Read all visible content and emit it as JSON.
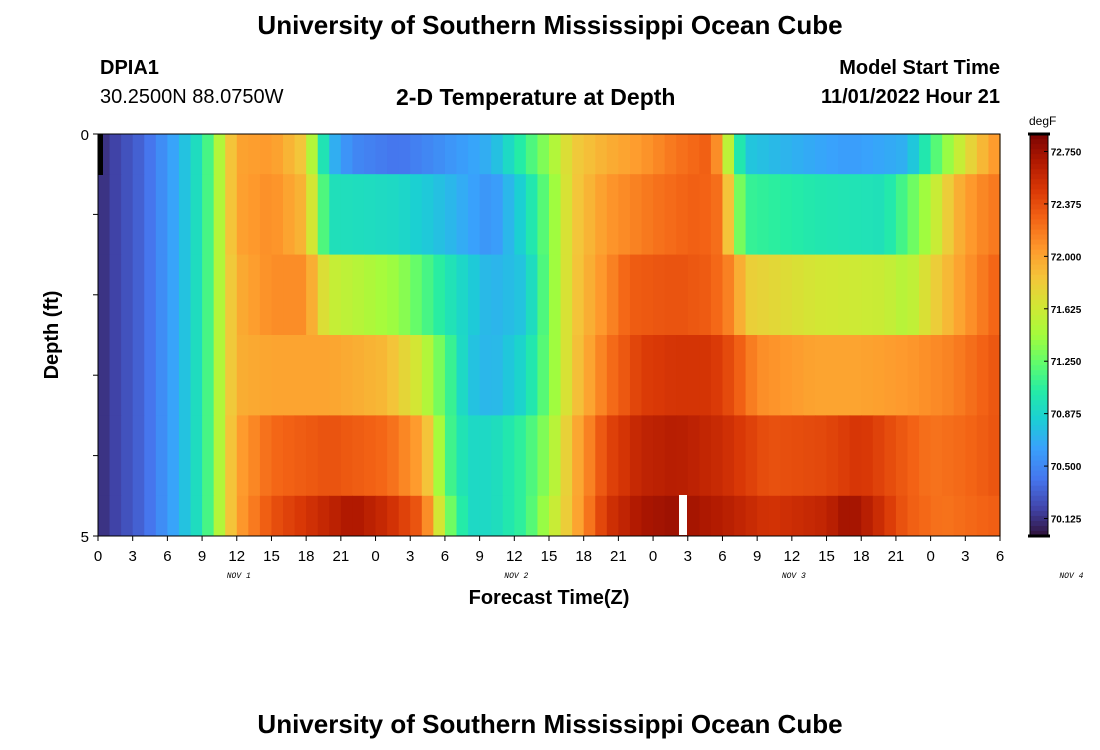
{
  "header": {
    "title": "University of Southern Mississippi Ocean Cube",
    "station": "DPIA1",
    "coords": "30.2500N  88.0750W",
    "subtitle": "2-D Temperature at Depth",
    "model_start_label": "Model Start Time",
    "model_start_value": "11/01/2022 Hour 21"
  },
  "footer": {
    "title": "University of Southern Mississippi Ocean Cube"
  },
  "chart_data": {
    "type": "heatmap",
    "xlabel": "Forecast Time(Z)",
    "ylabel": "Depth (ft)",
    "x_tick_labels": [
      "0",
      "3",
      "6",
      "9",
      "12",
      "15",
      "18",
      "21",
      "0",
      "3",
      "6",
      "9",
      "12",
      "15",
      "18",
      "21",
      "0",
      "3",
      "6",
      "9",
      "12",
      "15",
      "18",
      "21",
      "0",
      "3",
      "6"
    ],
    "day_labels": [
      {
        "label": "NOV 1",
        "hour": 12
      },
      {
        "label": "NOV 2",
        "hour": 36
      },
      {
        "label": "NOV 3",
        "hour": 60
      },
      {
        "label": "NOV 4",
        "hour": 84
      }
    ],
    "y_tick_labels": [
      {
        "value": 0,
        "label": "0"
      },
      {
        "value": 5,
        "label": "5"
      }
    ],
    "xlim": [
      0,
      78
    ],
    "ylim": [
      0,
      5
    ],
    "colorbar": {
      "unit": "degF",
      "min": 70.0,
      "max": 72.875,
      "tick_labels": [
        "72.750",
        "72.375",
        "72.000",
        "71.625",
        "71.250",
        "70.875",
        "70.500",
        "70.125"
      ]
    },
    "depth_layers_ft": [
      0,
      1,
      2,
      3,
      4,
      5
    ],
    "layers": [
      {
        "depth_range": "0-0.5",
        "keys": [
          [
            0,
            70.1
          ],
          [
            4,
            70.35
          ],
          [
            7,
            70.7
          ],
          [
            9,
            71.0
          ],
          [
            10,
            71.3
          ],
          [
            11,
            71.7
          ],
          [
            12,
            72.0
          ],
          [
            15,
            72.05
          ],
          [
            18,
            71.8
          ],
          [
            19,
            71.2
          ],
          [
            20,
            70.75
          ],
          [
            22,
            70.5
          ],
          [
            26,
            70.4
          ],
          [
            30,
            70.55
          ],
          [
            34,
            70.7
          ],
          [
            37,
            71.1
          ],
          [
            39,
            71.4
          ],
          [
            41,
            71.8
          ],
          [
            44,
            71.95
          ],
          [
            47,
            72.05
          ],
          [
            50,
            72.2
          ],
          [
            53,
            72.3
          ],
          [
            54,
            71.9
          ],
          [
            55,
            71.2
          ],
          [
            56,
            70.8
          ],
          [
            60,
            70.7
          ],
          [
            65,
            70.6
          ],
          [
            70,
            70.7
          ],
          [
            72,
            71.1
          ],
          [
            74,
            71.5
          ],
          [
            76,
            71.85
          ],
          [
            78,
            72.1
          ]
        ]
      },
      {
        "depth_range": "0.5-1.5",
        "keys": [
          [
            0,
            70.1
          ],
          [
            4,
            70.35
          ],
          [
            7,
            70.7
          ],
          [
            9,
            71.0
          ],
          [
            10,
            71.3
          ],
          [
            11,
            71.7
          ],
          [
            12,
            72.0
          ],
          [
            15,
            72.1
          ],
          [
            18,
            71.9
          ],
          [
            19,
            71.4
          ],
          [
            20,
            70.95
          ],
          [
            26,
            70.9
          ],
          [
            30,
            70.75
          ],
          [
            34,
            70.55
          ],
          [
            37,
            70.9
          ],
          [
            39,
            71.3
          ],
          [
            41,
            71.8
          ],
          [
            44,
            72.05
          ],
          [
            48,
            72.2
          ],
          [
            52,
            72.3
          ],
          [
            54,
            72.2
          ],
          [
            55,
            71.5
          ],
          [
            56,
            71.1
          ],
          [
            62,
            71.0
          ],
          [
            68,
            70.95
          ],
          [
            70,
            71.2
          ],
          [
            72,
            71.5
          ],
          [
            74,
            71.9
          ],
          [
            76,
            72.1
          ],
          [
            78,
            72.2
          ]
        ]
      },
      {
        "depth_range": "1.5-2.5",
        "keys": [
          [
            0,
            70.1
          ],
          [
            4,
            70.35
          ],
          [
            7,
            70.7
          ],
          [
            9,
            71.0
          ],
          [
            10,
            71.3
          ],
          [
            11,
            71.7
          ],
          [
            12,
            71.95
          ],
          [
            15,
            72.1
          ],
          [
            18,
            72.1
          ],
          [
            19,
            71.8
          ],
          [
            20,
            71.6
          ],
          [
            26,
            71.4
          ],
          [
            30,
            71.0
          ],
          [
            34,
            70.7
          ],
          [
            37,
            70.8
          ],
          [
            39,
            71.3
          ],
          [
            41,
            71.8
          ],
          [
            44,
            72.1
          ],
          [
            46,
            72.3
          ],
          [
            50,
            72.35
          ],
          [
            53,
            72.3
          ],
          [
            55,
            72.1
          ],
          [
            56,
            71.8
          ],
          [
            62,
            71.65
          ],
          [
            68,
            71.6
          ],
          [
            70,
            71.5
          ],
          [
            72,
            71.75
          ],
          [
            75,
            72.05
          ],
          [
            78,
            72.3
          ]
        ]
      },
      {
        "depth_range": "2.5-3.5",
        "keys": [
          [
            0,
            70.1
          ],
          [
            4,
            70.35
          ],
          [
            7,
            70.7
          ],
          [
            9,
            71.0
          ],
          [
            10,
            71.3
          ],
          [
            11,
            71.7
          ],
          [
            12,
            71.95
          ],
          [
            15,
            72.0
          ],
          [
            20,
            72.0
          ],
          [
            25,
            71.9
          ],
          [
            28,
            71.6
          ],
          [
            30,
            71.2
          ],
          [
            32,
            70.8
          ],
          [
            34,
            70.7
          ],
          [
            37,
            70.9
          ],
          [
            39,
            71.3
          ],
          [
            41,
            71.8
          ],
          [
            44,
            72.2
          ],
          [
            47,
            72.45
          ],
          [
            50,
            72.5
          ],
          [
            53,
            72.5
          ],
          [
            55,
            72.35
          ],
          [
            57,
            72.1
          ],
          [
            62,
            72.0
          ],
          [
            66,
            72.0
          ],
          [
            70,
            72.05
          ],
          [
            74,
            72.15
          ],
          [
            78,
            72.35
          ]
        ]
      },
      {
        "depth_range": "3.5-4.5",
        "keys": [
          [
            0,
            70.1
          ],
          [
            4,
            70.35
          ],
          [
            7,
            70.7
          ],
          [
            9,
            71.0
          ],
          [
            10,
            71.3
          ],
          [
            11,
            71.7
          ],
          [
            12,
            72.0
          ],
          [
            15,
            72.25
          ],
          [
            20,
            72.35
          ],
          [
            25,
            72.25
          ],
          [
            28,
            72.0
          ],
          [
            29,
            71.7
          ],
          [
            30,
            71.2
          ],
          [
            32,
            70.9
          ],
          [
            34,
            70.9
          ],
          [
            37,
            71.1
          ],
          [
            39,
            71.4
          ],
          [
            41,
            71.9
          ],
          [
            44,
            72.4
          ],
          [
            47,
            72.6
          ],
          [
            50,
            72.65
          ],
          [
            54,
            72.55
          ],
          [
            58,
            72.35
          ],
          [
            63,
            72.4
          ],
          [
            66,
            72.5
          ],
          [
            69,
            72.35
          ],
          [
            72,
            72.2
          ],
          [
            75,
            72.25
          ],
          [
            78,
            72.35
          ]
        ]
      },
      {
        "depth_range": "4.5-5",
        "keys": [
          [
            0,
            70.1
          ],
          [
            4,
            70.35
          ],
          [
            7,
            70.7
          ],
          [
            9,
            71.0
          ],
          [
            10,
            71.3
          ],
          [
            11,
            71.7
          ],
          [
            12,
            72.0
          ],
          [
            15,
            72.35
          ],
          [
            19,
            72.55
          ],
          [
            22,
            72.7
          ],
          [
            25,
            72.55
          ],
          [
            28,
            72.3
          ],
          [
            29,
            71.9
          ],
          [
            30,
            71.4
          ],
          [
            32,
            70.9
          ],
          [
            34,
            70.9
          ],
          [
            37,
            71.1
          ],
          [
            39,
            71.5
          ],
          [
            41,
            71.9
          ],
          [
            44,
            72.5
          ],
          [
            47,
            72.7
          ],
          [
            50,
            72.75
          ],
          [
            54,
            72.65
          ],
          [
            58,
            72.5
          ],
          [
            63,
            72.6
          ],
          [
            65,
            72.75
          ],
          [
            67,
            72.6
          ],
          [
            70,
            72.3
          ],
          [
            73,
            72.2
          ],
          [
            78,
            72.3
          ]
        ]
      }
    ]
  }
}
